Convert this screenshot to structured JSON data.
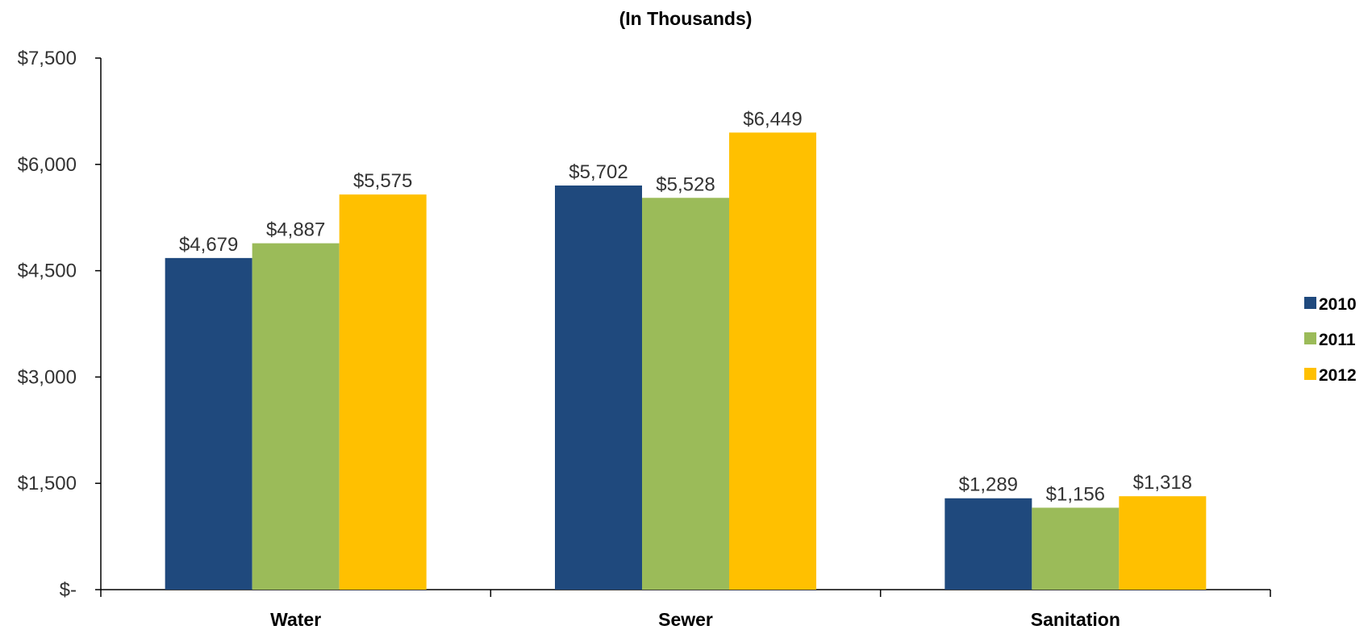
{
  "chart_data": {
    "type": "bar",
    "title": "",
    "subtitle": "(In Thousands)",
    "xlabel": "",
    "ylabel": "",
    "categories": [
      "Water",
      "Sewer",
      "Sanitation"
    ],
    "series": [
      {
        "name": "2010",
        "color": "#1F497D",
        "values": [
          4679,
          5702,
          1289
        ],
        "labels": [
          "$4,679",
          "$5,702",
          "$1,289"
        ]
      },
      {
        "name": "2011",
        "color": "#9BBB59",
        "values": [
          4887,
          5528,
          1156
        ],
        "labels": [
          "$4,887",
          "$5,528",
          "$1,156"
        ]
      },
      {
        "name": "2012",
        "color": "#FFC000",
        "values": [
          5575,
          6449,
          1318
        ],
        "labels": [
          "$5,575",
          "$6,449",
          "$1,318"
        ]
      }
    ],
    "ylim": [
      0,
      7500
    ],
    "yticks": [
      0,
      1500,
      3000,
      4500,
      6000,
      7500
    ],
    "ytick_labels": [
      "$-",
      "$1,500",
      "$3,000",
      "$4,500",
      "$6,000",
      "$7,500"
    ],
    "grid": false,
    "legend_position": "right"
  }
}
